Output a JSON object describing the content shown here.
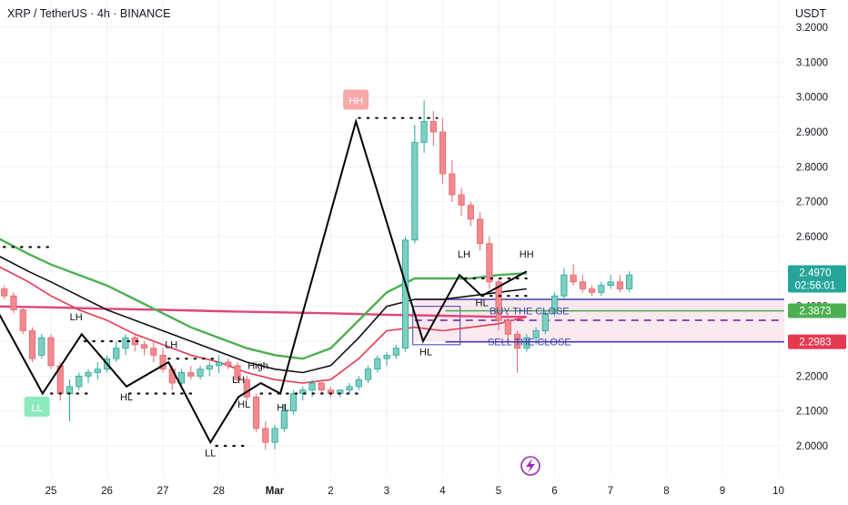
{
  "header": {
    "symbol_line": "XRP / TetherUS · 4h · BINANCE",
    "currency": "USDT"
  },
  "chart_data": {
    "type": "candlestick",
    "title": "XRP / TetherUS · 4h · BINANCE",
    "y_unit": "USDT",
    "ylim": [
      1.94,
      3.23
    ],
    "y_ticks": [
      "3.2000",
      "3.1000",
      "3.0000",
      "2.9000",
      "2.8000",
      "2.7000",
      "2.6000",
      "2.5000",
      "2.4000",
      "2.3000",
      "2.2000",
      "2.1000",
      "2.0000"
    ],
    "x_ticks": [
      {
        "label": "25",
        "x": 1
      },
      {
        "label": "26",
        "x": 2
      },
      {
        "label": "27",
        "x": 3
      },
      {
        "label": "28",
        "x": 4
      },
      {
        "label": "Mar",
        "x": 5
      },
      {
        "label": "2",
        "x": 6
      },
      {
        "label": "3",
        "x": 7
      },
      {
        "label": "4",
        "x": 8
      },
      {
        "label": "5",
        "x": 9
      },
      {
        "label": "6",
        "x": 10
      },
      {
        "label": "7",
        "x": 11
      },
      {
        "label": "8",
        "x": 12
      },
      {
        "label": "9",
        "x": 13
      },
      {
        "label": "10",
        "x": 14
      }
    ],
    "candle_x_step_days": 0.1667,
    "candles_ohlc": [
      [
        2.44,
        2.47,
        2.41,
        2.46
      ],
      [
        2.45,
        2.46,
        2.42,
        2.43
      ],
      [
        2.43,
        2.44,
        2.38,
        2.39
      ],
      [
        2.39,
        2.4,
        2.32,
        2.33
      ],
      [
        2.33,
        2.34,
        2.24,
        2.25
      ],
      [
        2.26,
        2.32,
        2.25,
        2.31
      ],
      [
        2.31,
        2.32,
        2.22,
        2.23
      ],
      [
        2.23,
        2.24,
        2.13,
        2.15
      ],
      [
        2.15,
        2.19,
        2.07,
        2.17
      ],
      [
        2.17,
        2.21,
        2.16,
        2.2
      ],
      [
        2.2,
        2.22,
        2.18,
        2.21
      ],
      [
        2.21,
        2.24,
        2.19,
        2.22
      ],
      [
        2.22,
        2.26,
        2.21,
        2.25
      ],
      [
        2.25,
        2.3,
        2.24,
        2.28
      ],
      [
        2.28,
        2.32,
        2.26,
        2.31
      ],
      [
        2.31,
        2.32,
        2.27,
        2.29
      ],
      [
        2.29,
        2.3,
        2.26,
        2.28
      ],
      [
        2.28,
        2.3,
        2.24,
        2.26
      ],
      [
        2.26,
        2.28,
        2.21,
        2.22
      ],
      [
        2.22,
        2.23,
        2.16,
        2.18
      ],
      [
        2.18,
        2.22,
        2.17,
        2.21
      ],
      [
        2.21,
        2.23,
        2.19,
        2.2
      ],
      [
        2.2,
        2.23,
        2.19,
        2.22
      ],
      [
        2.22,
        2.24,
        2.2,
        2.23
      ],
      [
        2.23,
        2.26,
        2.21,
        2.24
      ],
      [
        2.24,
        2.25,
        2.22,
        2.23
      ],
      [
        2.23,
        2.24,
        2.18,
        2.19
      ],
      [
        2.19,
        2.2,
        2.13,
        2.14
      ],
      [
        2.14,
        2.15,
        2.04,
        2.05
      ],
      [
        2.05,
        2.07,
        1.99,
        2.01
      ],
      [
        2.01,
        2.06,
        1.99,
        2.05
      ],
      [
        2.05,
        2.12,
        2.04,
        2.1
      ],
      [
        2.1,
        2.16,
        2.09,
        2.15
      ],
      [
        2.15,
        2.17,
        2.13,
        2.16
      ],
      [
        2.16,
        2.19,
        2.14,
        2.18
      ],
      [
        2.18,
        2.19,
        2.15,
        2.16
      ],
      [
        2.16,
        2.17,
        2.14,
        2.15
      ],
      [
        2.15,
        2.16,
        2.14,
        2.16
      ],
      [
        2.16,
        2.18,
        2.15,
        2.17
      ],
      [
        2.17,
        2.2,
        2.16,
        2.19
      ],
      [
        2.19,
        2.23,
        2.18,
        2.22
      ],
      [
        2.22,
        2.26,
        2.21,
        2.25
      ],
      [
        2.25,
        2.27,
        2.23,
        2.26
      ],
      [
        2.26,
        2.29,
        2.25,
        2.28
      ],
      [
        2.28,
        2.6,
        2.27,
        2.59
      ],
      [
        2.59,
        2.92,
        2.58,
        2.87
      ],
      [
        2.87,
        2.99,
        2.84,
        2.93
      ],
      [
        2.93,
        2.96,
        2.86,
        2.9
      ],
      [
        2.9,
        2.94,
        2.75,
        2.78
      ],
      [
        2.78,
        2.82,
        2.7,
        2.72
      ],
      [
        2.72,
        2.74,
        2.66,
        2.69
      ],
      [
        2.69,
        2.7,
        2.63,
        2.65
      ],
      [
        2.65,
        2.67,
        2.56,
        2.58
      ],
      [
        2.58,
        2.6,
        2.45,
        2.47
      ],
      [
        2.47,
        2.48,
        2.33,
        2.36
      ],
      [
        2.36,
        2.38,
        2.3,
        2.32
      ],
      [
        2.32,
        2.33,
        2.21,
        2.28
      ],
      [
        2.28,
        2.32,
        2.27,
        2.31
      ],
      [
        2.31,
        2.34,
        2.29,
        2.33
      ],
      [
        2.33,
        2.39,
        2.32,
        2.38
      ],
      [
        2.38,
        2.44,
        2.37,
        2.43
      ],
      [
        2.43,
        2.51,
        2.42,
        2.49
      ],
      [
        2.49,
        2.52,
        2.46,
        2.47
      ],
      [
        2.47,
        2.49,
        2.44,
        2.45
      ],
      [
        2.45,
        2.46,
        2.43,
        2.44
      ],
      [
        2.44,
        2.47,
        2.43,
        2.46
      ],
      [
        2.46,
        2.49,
        2.45,
        2.47
      ],
      [
        2.47,
        2.49,
        2.44,
        2.45
      ],
      [
        2.45,
        2.5,
        2.44,
        2.49
      ]
    ],
    "ma_green": [
      [
        0.0,
        2.6
      ],
      [
        0.6,
        2.55
      ],
      [
        1.0,
        2.52
      ],
      [
        1.5,
        2.49
      ],
      [
        2.0,
        2.46
      ],
      [
        2.5,
        2.42
      ],
      [
        3.0,
        2.38
      ],
      [
        3.5,
        2.34
      ],
      [
        4.0,
        2.31
      ],
      [
        4.5,
        2.28
      ],
      [
        5.0,
        2.26
      ],
      [
        5.5,
        2.25
      ],
      [
        6.0,
        2.28
      ],
      [
        6.5,
        2.36
      ],
      [
        7.0,
        2.44
      ],
      [
        7.5,
        2.48
      ],
      [
        8.0,
        2.48
      ],
      [
        8.5,
        2.48
      ],
      [
        9.0,
        2.49
      ],
      [
        9.5,
        2.495
      ]
    ],
    "ma_black": [
      [
        0.0,
        2.55
      ],
      [
        0.6,
        2.5
      ],
      [
        1.0,
        2.47
      ],
      [
        1.5,
        2.43
      ],
      [
        2.0,
        2.39
      ],
      [
        2.5,
        2.36
      ],
      [
        3.0,
        2.33
      ],
      [
        3.5,
        2.3
      ],
      [
        4.0,
        2.27
      ],
      [
        4.5,
        2.24
      ],
      [
        5.0,
        2.22
      ],
      [
        5.5,
        2.21
      ],
      [
        6.0,
        2.23
      ],
      [
        6.5,
        2.31
      ],
      [
        7.0,
        2.4
      ],
      [
        7.5,
        2.42
      ],
      [
        8.0,
        2.42
      ],
      [
        8.5,
        2.43
      ],
      [
        9.0,
        2.44
      ],
      [
        9.5,
        2.45
      ]
    ],
    "ma_red": [
      [
        0.0,
        2.52
      ],
      [
        0.6,
        2.47
      ],
      [
        1.0,
        2.43
      ],
      [
        1.5,
        2.39
      ],
      [
        2.0,
        2.36
      ],
      [
        2.5,
        2.32
      ],
      [
        3.0,
        2.29
      ],
      [
        3.5,
        2.26
      ],
      [
        4.0,
        2.24
      ],
      [
        4.5,
        2.21
      ],
      [
        5.0,
        2.19
      ],
      [
        5.5,
        2.18
      ],
      [
        6.0,
        2.19
      ],
      [
        6.5,
        2.25
      ],
      [
        7.0,
        2.33
      ],
      [
        7.5,
        2.34
      ],
      [
        8.0,
        2.33
      ],
      [
        8.5,
        2.34
      ],
      [
        9.0,
        2.35
      ],
      [
        9.5,
        2.37
      ]
    ],
    "ma_pink": [
      [
        0.0,
        2.4
      ],
      [
        1.0,
        2.397
      ],
      [
        2.0,
        2.393
      ],
      [
        3.0,
        2.39
      ],
      [
        4.0,
        2.386
      ],
      [
        5.0,
        2.383
      ],
      [
        6.0,
        2.38
      ],
      [
        7.0,
        2.376
      ],
      [
        8.0,
        2.373
      ],
      [
        9.0,
        2.37
      ],
      [
        9.5,
        2.37
      ]
    ],
    "zigzag": [
      [
        0.0,
        2.4
      ],
      [
        0.85,
        2.15
      ],
      [
        1.55,
        2.32
      ],
      [
        2.35,
        2.17
      ],
      [
        3.1,
        2.24
      ],
      [
        3.85,
        2.01
      ],
      [
        4.35,
        2.14
      ],
      [
        4.75,
        2.18
      ],
      [
        5.1,
        2.15
      ],
      [
        6.45,
        2.93
      ],
      [
        7.65,
        2.3
      ],
      [
        8.3,
        2.49
      ],
      [
        8.7,
        2.43
      ],
      [
        9.5,
        2.5
      ]
    ],
    "swing_labels": [
      {
        "text": "LH",
        "x": 1.45,
        "y": 2.36
      },
      {
        "text": "HL",
        "x": 2.35,
        "y": 2.13
      },
      {
        "text": "LH",
        "x": 3.15,
        "y": 2.28
      },
      {
        "text": "LL",
        "x": 3.85,
        "y": 1.97
      },
      {
        "text": "LH",
        "x": 4.35,
        "y": 2.18
      },
      {
        "text": "High",
        "x": 4.7,
        "y": 2.22
      },
      {
        "text": "HL",
        "x": 4.45,
        "y": 2.11
      },
      {
        "text": "HL",
        "x": 5.15,
        "y": 2.1
      },
      {
        "text": "HL",
        "x": 7.7,
        "y": 2.26
      },
      {
        "text": "LH",
        "x": 8.38,
        "y": 2.54
      },
      {
        "text": "HL",
        "x": 8.7,
        "y": 2.4
      },
      {
        "text": "HH",
        "x": 9.5,
        "y": 2.54
      }
    ],
    "boxed_labels": [
      {
        "text": "HH",
        "x": 6.45,
        "y": 2.99,
        "color": "#f7a8a8"
      },
      {
        "text": "LL",
        "x": 0.75,
        "y": 2.11,
        "color": "#8ee8bd"
      }
    ],
    "level_lines": [
      {
        "label": "BUY THE CLOSE",
        "value": 2.3873,
        "color": "#4caf50"
      },
      {
        "label": "SELL THE CLOSE",
        "value": 2.2983,
        "color": "#3f3fb0"
      }
    ],
    "zone": {
      "top": 2.42,
      "bottom": 2.3,
      "start_x": 7.5,
      "mid_value": 2.36
    },
    "price_badges": [
      {
        "value": 2.497,
        "text": "2.4970",
        "sub": "02:56:01",
        "color": "#26a69a"
      },
      {
        "value": 2.3873,
        "text": "2.3873",
        "color": "#4caf50"
      },
      {
        "value": 2.2983,
        "text": "2.2983",
        "color": "#e53950"
      }
    ],
    "grid": true,
    "colors": {
      "up": "#7fcfc1",
      "down": "#f08a90",
      "up_border": "#26a69a",
      "down_border": "#e8646e"
    }
  }
}
